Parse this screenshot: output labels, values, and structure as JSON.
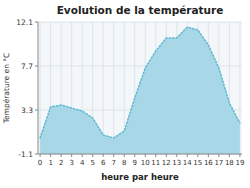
{
  "chart_data": {
    "type": "area",
    "title": "Evolution de la température",
    "xlabel": "heure par heure",
    "ylabel": "Température en °C",
    "x": [
      0,
      1,
      2,
      3,
      4,
      5,
      6,
      7,
      8,
      9,
      10,
      11,
      12,
      13,
      14,
      15,
      16,
      17,
      18,
      19
    ],
    "series": [
      {
        "type": "area",
        "color": "#a8d8e8",
        "values": [
          0.5,
          3.6,
          3.8,
          3.5,
          3.2,
          2.5,
          0.8,
          0.5,
          1.2,
          4.5,
          7.5,
          9.2,
          10.5,
          10.5,
          11.6,
          11.3,
          9.8,
          7.5,
          4.0,
          2.0
        ]
      },
      {
        "type": "line",
        "color": "#60b8d0",
        "line_style": "dotted",
        "values": [
          0.5,
          3.6,
          3.8,
          3.5,
          3.2,
          2.5,
          0.8,
          0.5,
          1.2,
          4.5,
          7.5,
          9.2,
          10.5,
          10.5,
          11.6,
          11.3,
          9.8,
          7.5,
          4.0,
          2.0
        ]
      }
    ],
    "xlim": [
      -0.2,
      19.2
    ],
    "xticks": [
      0,
      1,
      2,
      3,
      4,
      5,
      6,
      7,
      8,
      9,
      10,
      11,
      12,
      13,
      14,
      15,
      16,
      17,
      18,
      19
    ],
    "ylim": [
      -1.1,
      12.1
    ],
    "yticks": [
      -1.1,
      3.3,
      7.7,
      12.1
    ],
    "grid": true
  }
}
